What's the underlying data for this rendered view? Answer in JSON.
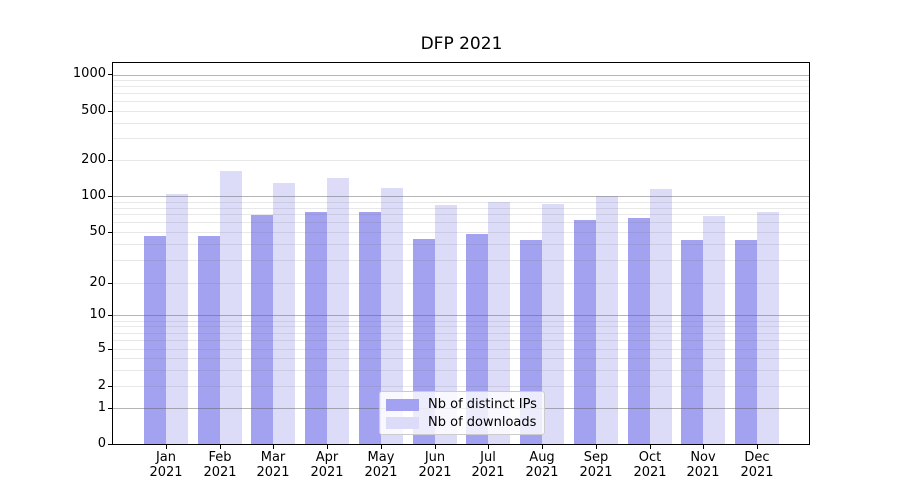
{
  "chart_data": {
    "type": "bar",
    "title": "DFP 2021",
    "categories": [
      "Jan 2021",
      "Feb 2021",
      "Mar 2021",
      "Apr 2021",
      "May 2021",
      "Jun 2021",
      "Jul 2021",
      "Aug 2021",
      "Sep 2021",
      "Oct 2021",
      "Nov 2021",
      "Dec 2021"
    ],
    "series": [
      {
        "name": "Nb of distinct IPs",
        "color": "#a2a2f0",
        "values": [
          46,
          46,
          69,
          73,
          74,
          44,
          48,
          43,
          63,
          65,
          43,
          43
        ]
      },
      {
        "name": "Nb of downloads",
        "color": "#dcdcf9",
        "values": [
          104,
          160,
          128,
          140,
          116,
          84,
          89,
          85,
          101,
          114,
          68,
          73
        ]
      }
    ],
    "xlabel": "",
    "ylabel": "",
    "yscale": "symlog",
    "ylim": [
      0,
      1259
    ],
    "y_tick_labels": [
      0,
      1,
      2,
      5,
      10,
      20,
      50,
      100,
      200,
      500,
      1000
    ],
    "y_major_gridlines": [
      1,
      10,
      100,
      1000
    ],
    "y_minor_gridlines": [
      2,
      3,
      4,
      5,
      6,
      7,
      8,
      9,
      20,
      30,
      40,
      50,
      60,
      70,
      80,
      90,
      200,
      300,
      400,
      500,
      600,
      700,
      800,
      900
    ],
    "grid": "on",
    "legend_position": "lower center",
    "colors": {
      "spine": "#000000",
      "major_grid": "#b0b0b0",
      "minor_grid": "#e4e4e4",
      "text": "#000000",
      "background": "#ffffff"
    }
  }
}
